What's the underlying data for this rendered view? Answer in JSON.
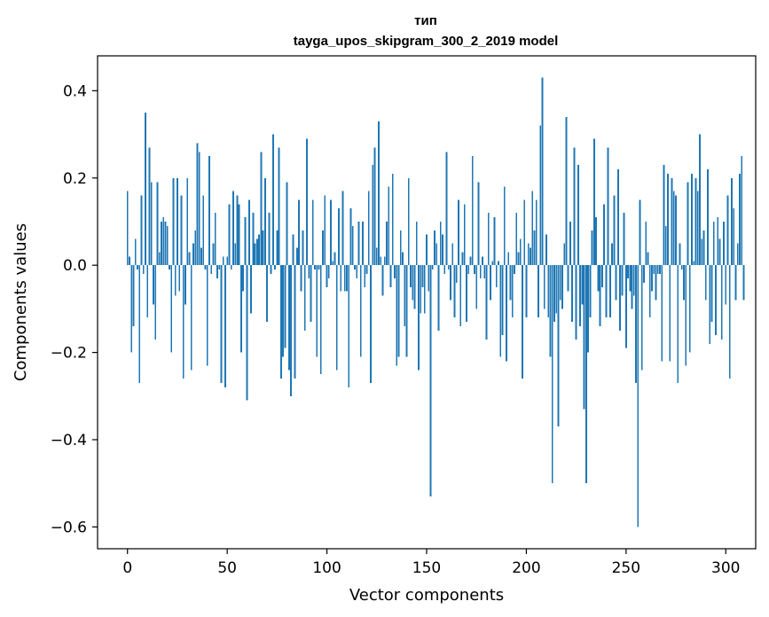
{
  "chart_data": {
    "type": "bar",
    "title": "тип",
    "subtitle": "tayga_upos_skipgram_300_2_2019 model",
    "xlabel": "Vector components",
    "ylabel": "Components values",
    "xlim": [
      -15,
      315
    ],
    "ylim": [
      -0.65,
      0.48
    ],
    "xticks": [
      0,
      50,
      100,
      150,
      200,
      250,
      300
    ],
    "xtick_labels": [
      "0",
      "50",
      "100",
      "150",
      "200",
      "250",
      "300"
    ],
    "yticks": [
      0.4,
      0.2,
      0.0,
      -0.2,
      -0.4,
      -0.6
    ],
    "ytick_labels": [
      "0.4",
      "0.2",
      "0.0",
      "−0.2",
      "−0.4",
      "−0.6"
    ],
    "bar_color": "#1f77b4",
    "values": [
      0.17,
      0.02,
      -0.2,
      -0.14,
      0.06,
      -0.01,
      -0.27,
      0.16,
      -0.02,
      0.35,
      -0.12,
      0.27,
      0.19,
      -0.09,
      -0.17,
      0.19,
      0.03,
      0.1,
      0.11,
      0.1,
      0.09,
      -0.01,
      -0.2,
      0.2,
      -0.07,
      0.2,
      -0.06,
      0.16,
      -0.26,
      -0.09,
      0.2,
      0.03,
      -0.24,
      0.05,
      0.08,
      0.28,
      0.26,
      0.04,
      0.16,
      -0.01,
      -0.23,
      0.25,
      -0.02,
      0.05,
      0.12,
      -0.03,
      -0.01,
      -0.27,
      0.02,
      -0.28,
      0.02,
      0.14,
      -0.01,
      0.17,
      0.05,
      0.16,
      0.14,
      -0.2,
      -0.06,
      0.11,
      -0.31,
      0.15,
      -0.11,
      0.12,
      0.05,
      0.06,
      0.07,
      0.26,
      0.08,
      0.2,
      -0.13,
      0.12,
      -0.02,
      0.3,
      -0.01,
      0.08,
      0.27,
      -0.26,
      -0.21,
      -0.19,
      0.19,
      -0.24,
      -0.3,
      0.07,
      -0.26,
      0.04,
      0.15,
      -0.06,
      0.08,
      -0.15,
      0.29,
      -0.03,
      -0.13,
      0.15,
      -0.01,
      -0.21,
      -0.01,
      -0.25,
      0.08,
      0.16,
      -0.05,
      -0.03,
      0.15,
      0.01,
      0.03,
      -0.24,
      0.13,
      -0.06,
      0.17,
      -0.06,
      -0.06,
      -0.28,
      0.13,
      0.09,
      -0.01,
      -0.03,
      0.1,
      -0.21,
      0.1,
      -0.05,
      -0.02,
      0.17,
      -0.27,
      0.23,
      0.27,
      0.04,
      0.33,
      0.02,
      -0.07,
      0.02,
      0.1,
      0.18,
      -0.05,
      0.21,
      -0.03,
      -0.23,
      -0.21,
      0.08,
      0.03,
      -0.14,
      -0.21,
      0.2,
      -0.05,
      -0.08,
      -0.1,
      0.1,
      -0.24,
      -0.11,
      -0.05,
      -0.11,
      0.07,
      -0.06,
      -0.53,
      -0.01,
      0.08,
      0.05,
      -0.15,
      0.1,
      0.07,
      -0.02,
      0.26,
      -0.01,
      -0.08,
      0.05,
      -0.12,
      -0.04,
      0.15,
      -0.14,
      0.03,
      0.14,
      -0.13,
      -0.02,
      0.02,
      0.25,
      -0.02,
      -0.1,
      0.19,
      -0.03,
      0.02,
      -0.03,
      -0.17,
      0.12,
      -0.08,
      0.01,
      0.11,
      -0.05,
      0.01,
      -0.21,
      -0.16,
      0.18,
      -0.22,
      0.03,
      -0.08,
      -0.12,
      -0.02,
      0.12,
      0.03,
      0.06,
      -0.26,
      0.15,
      -0.12,
      0.05,
      0.04,
      0.17,
      0.08,
      0.15,
      -0.12,
      0.32,
      0.43,
      -0.1,
      0.07,
      -0.12,
      -0.21,
      -0.5,
      -0.13,
      -0.11,
      -0.37,
      -0.08,
      -0.1,
      0.05,
      0.34,
      -0.06,
      0.1,
      -0.13,
      0.27,
      -0.17,
      0.23,
      -0.14,
      -0.09,
      -0.33,
      -0.5,
      -0.2,
      -0.12,
      0.08,
      0.29,
      0.11,
      -0.06,
      -0.14,
      -0.05,
      0.14,
      -0.12,
      0.27,
      -0.12,
      0.05,
      0.16,
      -0.08,
      0.22,
      -0.15,
      -0.07,
      0.12,
      -0.19,
      -0.03,
      -0.06,
      -0.1,
      -0.07,
      -0.27,
      -0.6,
      0.15,
      -0.24,
      -0.04,
      0.1,
      0.03,
      -0.12,
      -0.06,
      -0.02,
      -0.08,
      -0.02,
      -0.02,
      -0.22,
      0.23,
      0.09,
      0.21,
      -0.22,
      0.2,
      0.17,
      0.16,
      -0.27,
      0.05,
      -0.01,
      -0.08,
      -0.23,
      0.19,
      -0.2,
      0.21,
      0.01,
      0.2,
      0.17,
      0.3,
      0.06,
      0.08,
      -0.08,
      0.22,
      -0.18,
      -0.13,
      0.1,
      -0.16,
      0.11,
      0.06,
      -0.17,
      0.1,
      -0.09,
      0.16,
      -0.26,
      0.2,
      0.13,
      -0.08,
      0.05,
      0.21,
      0.25,
      -0.08
    ]
  }
}
